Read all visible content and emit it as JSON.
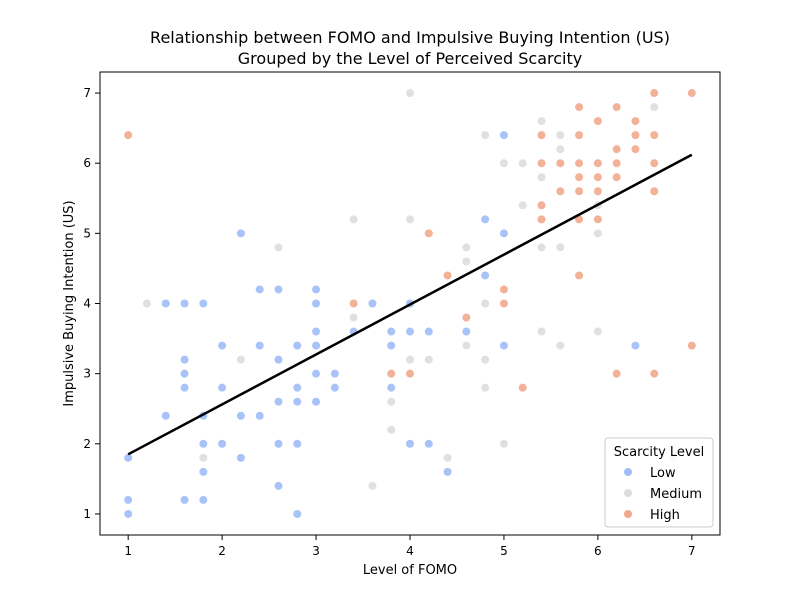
{
  "chart_data": {
    "type": "scatter",
    "title": "Relationship between FOMO and Impulsive Buying Intention (US)",
    "subtitle": "Grouped by the Level of Perceived Scarcity",
    "xlabel": "Level of FOMO",
    "ylabel": "Impulsive Buying Intention (US)",
    "xlim": [
      0.7,
      7.3
    ],
    "ylim": [
      0.7,
      7.3
    ],
    "x_ticks": [
      "1",
      "2",
      "3",
      "4",
      "5",
      "6",
      "7"
    ],
    "y_ticks": [
      "1",
      "2",
      "3",
      "4",
      "5",
      "6",
      "7"
    ],
    "grid": false,
    "legend": {
      "title": "Scarcity Level",
      "position": "lower-right",
      "entries": [
        {
          "label": "Low",
          "color": "#9fbcf7"
        },
        {
          "label": "Medium",
          "color": "#dddddd"
        },
        {
          "label": "High",
          "color": "#f2a88d"
        }
      ]
    },
    "regression_line": {
      "x": [
        1,
        7
      ],
      "y": [
        1.85,
        6.12
      ],
      "color": "#000000"
    },
    "series": [
      {
        "name": "Low",
        "color": "#9fbcf7",
        "points": [
          [
            1,
            1
          ],
          [
            1,
            1.2
          ],
          [
            1,
            1.8
          ],
          [
            1.4,
            2.4
          ],
          [
            1.4,
            4
          ],
          [
            1.6,
            4
          ],
          [
            1.6,
            3.2
          ],
          [
            1.6,
            3
          ],
          [
            1.6,
            2.8
          ],
          [
            1.6,
            1.2
          ],
          [
            1.8,
            4
          ],
          [
            1.8,
            2.4
          ],
          [
            1.8,
            2
          ],
          [
            1.8,
            1.6
          ],
          [
            1.8,
            1.2
          ],
          [
            2,
            3.4
          ],
          [
            2,
            2.8
          ],
          [
            2,
            2
          ],
          [
            2.2,
            5
          ],
          [
            2.2,
            2.4
          ],
          [
            2.2,
            1.8
          ],
          [
            2.4,
            4.2
          ],
          [
            2.4,
            3.4
          ],
          [
            2.4,
            2.4
          ],
          [
            2.6,
            4.2
          ],
          [
            2.6,
            3.2
          ],
          [
            2.6,
            2.6
          ],
          [
            2.6,
            2
          ],
          [
            2.6,
            1.4
          ],
          [
            2.8,
            3.4
          ],
          [
            2.8,
            2.8
          ],
          [
            2.8,
            2.6
          ],
          [
            2.8,
            2
          ],
          [
            2.8,
            1
          ],
          [
            3,
            4.2
          ],
          [
            3,
            4
          ],
          [
            3,
            3.6
          ],
          [
            3,
            3.4
          ],
          [
            3,
            3
          ],
          [
            3,
            2.6
          ],
          [
            3.2,
            3
          ],
          [
            3.2,
            2.8
          ],
          [
            3.4,
            3.6
          ],
          [
            3.6,
            4
          ],
          [
            3.8,
            3.6
          ],
          [
            3.8,
            3.4
          ],
          [
            3.8,
            2.8
          ],
          [
            4,
            4
          ],
          [
            4,
            3.6
          ],
          [
            4,
            2
          ],
          [
            4.2,
            3.6
          ],
          [
            4.2,
            2
          ],
          [
            4.4,
            1.6
          ],
          [
            4.6,
            3.6
          ],
          [
            4.8,
            5.2
          ],
          [
            4.8,
            4.4
          ],
          [
            5,
            6.4
          ],
          [
            5,
            5
          ],
          [
            5,
            3.4
          ],
          [
            6.4,
            3.4
          ]
        ]
      },
      {
        "name": "Medium",
        "color": "#dddddd",
        "points": [
          [
            1.2,
            4
          ],
          [
            1.8,
            1.8
          ],
          [
            2.2,
            3.2
          ],
          [
            2.6,
            4.8
          ],
          [
            3.4,
            5.2
          ],
          [
            3.4,
            3.8
          ],
          [
            3.6,
            1.4
          ],
          [
            3.8,
            2.6
          ],
          [
            3.8,
            2.2
          ],
          [
            4,
            7
          ],
          [
            4,
            5.2
          ],
          [
            4,
            3.2
          ],
          [
            4.2,
            3.2
          ],
          [
            4.4,
            1.8
          ],
          [
            4.6,
            4.8
          ],
          [
            4.6,
            4.6
          ],
          [
            4.6,
            3.4
          ],
          [
            4.8,
            6.4
          ],
          [
            4.8,
            4
          ],
          [
            4.8,
            3.2
          ],
          [
            4.8,
            2.8
          ],
          [
            5,
            6
          ],
          [
            5,
            2
          ],
          [
            5.2,
            6
          ],
          [
            5.2,
            5.4
          ],
          [
            5.4,
            6.6
          ],
          [
            5.4,
            5.8
          ],
          [
            5.4,
            4.8
          ],
          [
            5.4,
            3.6
          ],
          [
            5.6,
            6.4
          ],
          [
            5.6,
            6.2
          ],
          [
            5.6,
            4.8
          ],
          [
            5.6,
            3.4
          ],
          [
            6,
            5.4
          ],
          [
            6,
            5
          ],
          [
            6,
            3.6
          ],
          [
            6.6,
            6.8
          ],
          [
            6.8,
            1.8
          ]
        ]
      },
      {
        "name": "High",
        "color": "#f2a88d",
        "points": [
          [
            1,
            6.4
          ],
          [
            3.4,
            4
          ],
          [
            3.8,
            3
          ],
          [
            4,
            3
          ],
          [
            4.2,
            5
          ],
          [
            4.4,
            4.4
          ],
          [
            4.6,
            3.8
          ],
          [
            5,
            4.2
          ],
          [
            5,
            4
          ],
          [
            5.2,
            2.8
          ],
          [
            5.4,
            6.4
          ],
          [
            5.4,
            6
          ],
          [
            5.4,
            5.4
          ],
          [
            5.4,
            5.2
          ],
          [
            5.6,
            6
          ],
          [
            5.6,
            5.6
          ],
          [
            5.8,
            6.8
          ],
          [
            5.8,
            6.4
          ],
          [
            5.8,
            6
          ],
          [
            5.8,
            5.8
          ],
          [
            5.8,
            5.6
          ],
          [
            5.8,
            5.2
          ],
          [
            5.8,
            4.4
          ],
          [
            6,
            6.6
          ],
          [
            6,
            6
          ],
          [
            6,
            5.8
          ],
          [
            6,
            5.6
          ],
          [
            6,
            5.2
          ],
          [
            6.2,
            6.8
          ],
          [
            6.2,
            6.2
          ],
          [
            6.2,
            6
          ],
          [
            6.2,
            5.8
          ],
          [
            6.2,
            3
          ],
          [
            6.4,
            6.6
          ],
          [
            6.4,
            6.4
          ],
          [
            6.4,
            6.2
          ],
          [
            6.6,
            7
          ],
          [
            6.6,
            6.4
          ],
          [
            6.6,
            6
          ],
          [
            6.6,
            5.6
          ],
          [
            6.6,
            3
          ],
          [
            7,
            7
          ],
          [
            7,
            3.4
          ]
        ]
      }
    ]
  }
}
